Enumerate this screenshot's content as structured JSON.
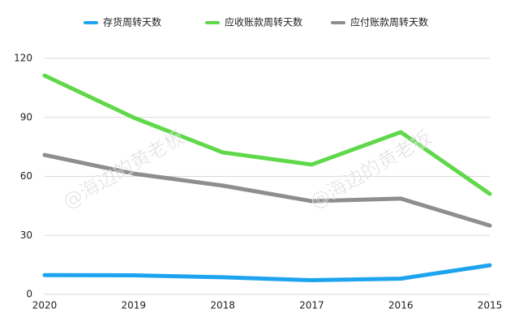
{
  "chart_data": {
    "type": "line",
    "categories": [
      "2020",
      "2019",
      "2018",
      "2017",
      "2016",
      "2015"
    ],
    "series": [
      {
        "name": "存货周转天数",
        "color": "#1ea4ee",
        "values": [
          9.8,
          9.7,
          8.7,
          7.2,
          8.0,
          14.8
        ]
      },
      {
        "name": "应收账款周转天数",
        "color": "#5fd84a",
        "values": [
          111.3,
          89.9,
          72.2,
          66.0,
          82.5,
          51.1
        ]
      },
      {
        "name": "应付账款周转天数",
        "color": "#8e8e8e",
        "values": [
          70.9,
          61.4,
          55.3,
          47.4,
          48.7,
          35.0
        ]
      }
    ],
    "ylim": [
      0,
      120
    ],
    "yticks": [
      0,
      30,
      60,
      90,
      120
    ],
    "grid": true,
    "legend": "top",
    "watermark": "@海边的黄老板"
  }
}
